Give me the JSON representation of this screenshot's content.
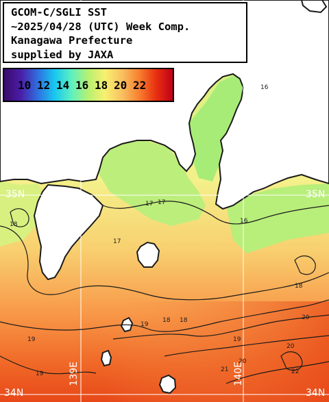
{
  "title": {
    "line1": "GCOM-C/SGLI SST",
    "line2": "~2025/04/28 (UTC) Week Comp.",
    "line3": "Kanagawa Prefecture",
    "line4": "supplied by JAXA"
  },
  "legend": {
    "labels": [
      "10",
      "12",
      "14",
      "16",
      "18",
      "20",
      "22"
    ],
    "colors": [
      "#3a0a6a",
      "#4a1ea8",
      "#2f6fe0",
      "#18c8f0",
      "#5ef0c0",
      "#b8f070",
      "#f8f070",
      "#f8c060",
      "#f88030",
      "#e83010",
      "#c00018"
    ]
  },
  "grid": {
    "lat_labels": [
      "35N",
      "35N",
      "34N",
      "34N"
    ],
    "lon_labels": [
      "139E",
      "140E"
    ]
  },
  "contours": {
    "labels": [
      "17",
      "17",
      "18",
      "18",
      "18",
      "18",
      "19",
      "19",
      "19",
      "19",
      "20",
      "20",
      "20",
      "21",
      "22",
      "16",
      "17",
      "16"
    ]
  }
}
